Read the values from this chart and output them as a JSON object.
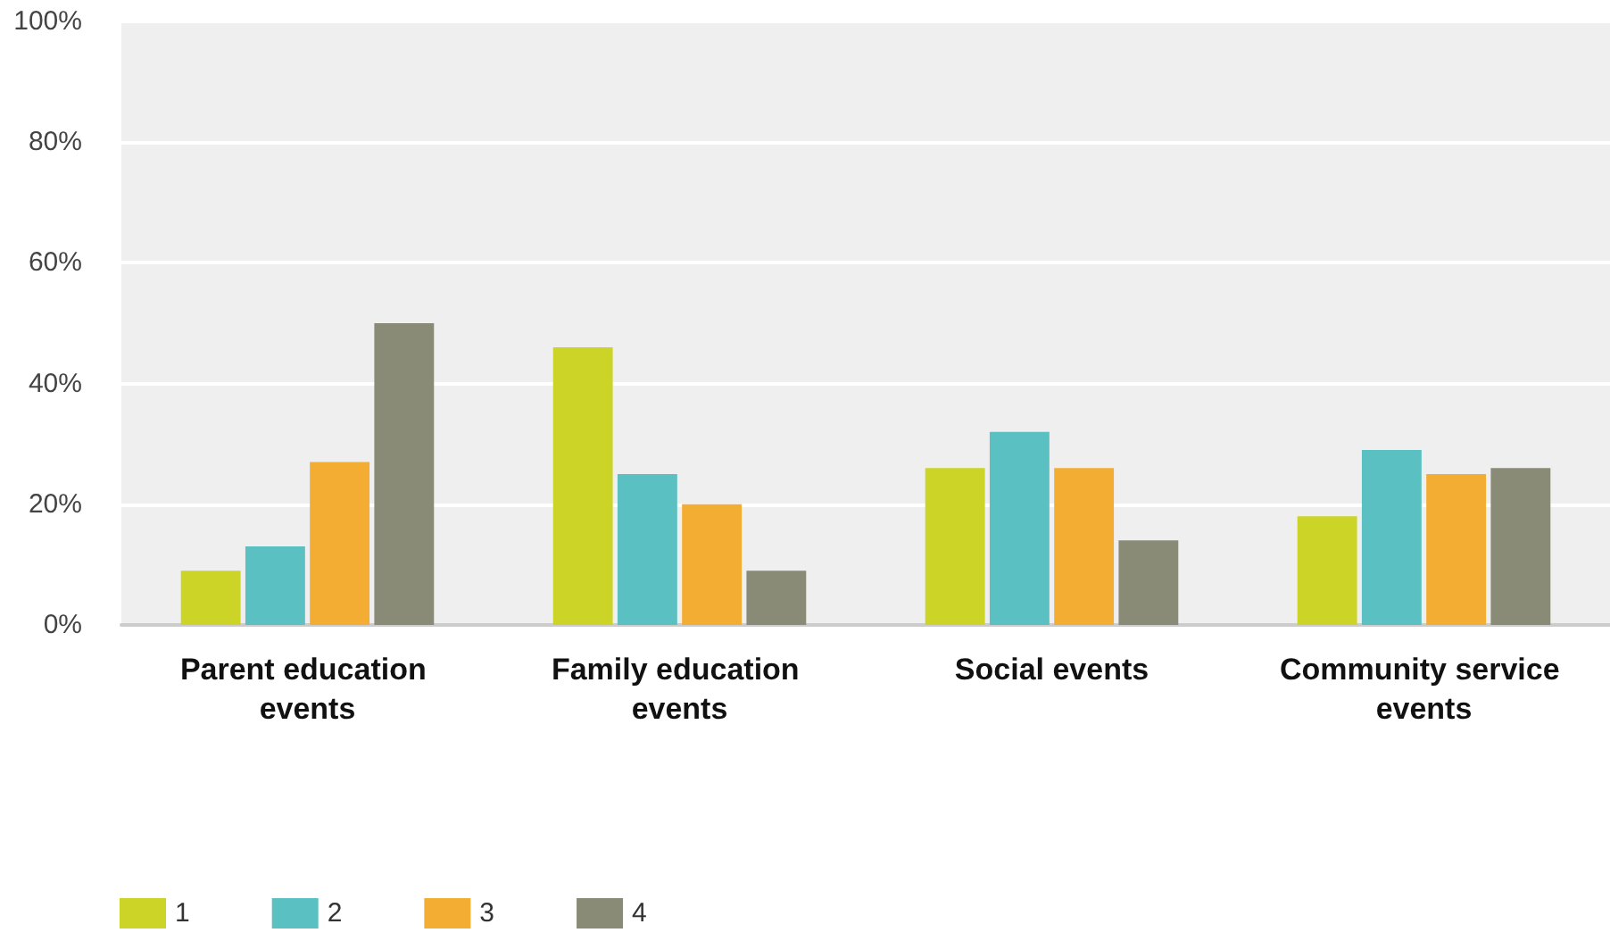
{
  "chart_data": {
    "type": "bar",
    "categories": [
      "Parent education events",
      "Family education events",
      "Social events",
      "Community service events"
    ],
    "series": [
      {
        "name": "1",
        "color": "#cbd427",
        "values": [
          9,
          46,
          26,
          18
        ]
      },
      {
        "name": "2",
        "color": "#5bc0c1",
        "values": [
          13,
          25,
          32,
          29
        ]
      },
      {
        "name": "3",
        "color": "#f4ad33",
        "values": [
          27,
          20,
          26,
          25
        ]
      },
      {
        "name": "4",
        "color": "#8a8b77",
        "values": [
          50,
          9,
          14,
          26
        ]
      }
    ],
    "ylim": [
      0,
      100
    ],
    "yticks": [
      {
        "value": 0,
        "label": "0%"
      },
      {
        "value": 20,
        "label": "20%"
      },
      {
        "value": 40,
        "label": "40%"
      },
      {
        "value": 60,
        "label": "60%"
      },
      {
        "value": 80,
        "label": "80%"
      },
      {
        "value": 100,
        "label": "100%"
      }
    ],
    "grid": "y",
    "legend": "bottom left"
  }
}
